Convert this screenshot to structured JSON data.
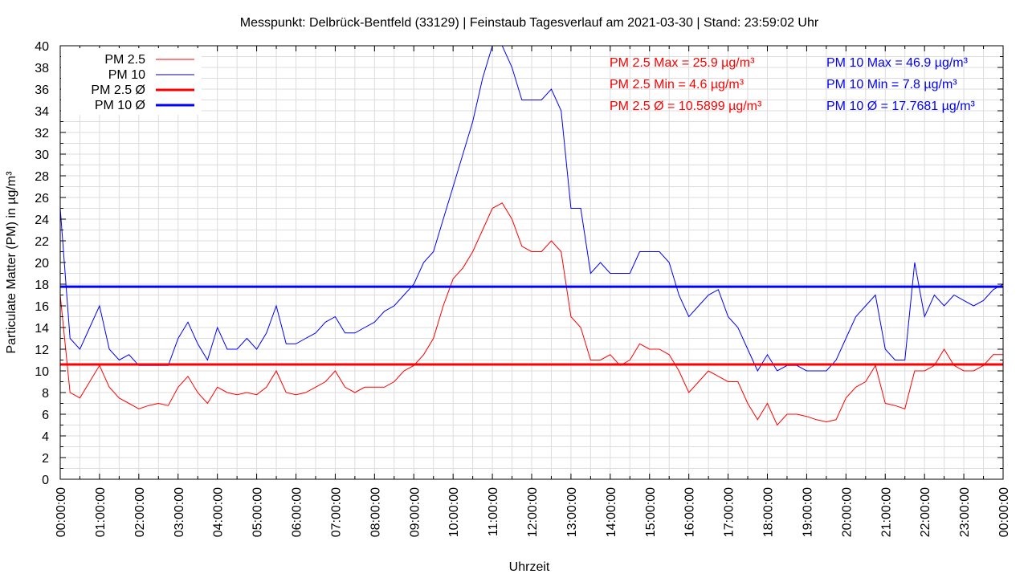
{
  "chart_data": {
    "type": "line",
    "title": "Messpunkt: Delbrück-Bentfeld (33129) | Feinstaub Tagesverlauf am 2021-03-30 | Stand: 23:59:02 Uhr",
    "xlabel": "Uhrzeit",
    "ylabel": "Particulate Matter (PM) in µg/m³",
    "ylim": [
      0,
      40
    ],
    "xlim_hours": [
      0,
      24
    ],
    "grid": true,
    "legend_position": "top-left",
    "x_start_hours": 0,
    "x_step_hours": 0.25,
    "y_ticks": [
      "0",
      "2",
      "4",
      "6",
      "8",
      "10",
      "12",
      "14",
      "16",
      "18",
      "20",
      "22",
      "24",
      "26",
      "28",
      "30",
      "32",
      "34",
      "36",
      "38",
      "40"
    ],
    "x_ticks": [
      "00:00:00",
      "01:00:00",
      "02:00:00",
      "03:00:00",
      "04:00:00",
      "05:00:00",
      "06:00:00",
      "07:00:00",
      "08:00:00",
      "09:00:00",
      "10:00:00",
      "11:00:00",
      "12:00:00",
      "13:00:00",
      "14:00:00",
      "15:00:00",
      "16:00:00",
      "17:00:00",
      "18:00:00",
      "19:00:00",
      "20:00:00",
      "21:00:00",
      "22:00:00",
      "23:00:00",
      "00:00:00"
    ],
    "series": [
      {
        "name": "PM 2.5",
        "color": "#ff0000",
        "values": [
          17,
          8,
          7.5,
          9,
          10.5,
          8.5,
          7.5,
          7,
          6.5,
          6.8,
          7,
          6.8,
          8.5,
          9.5,
          8,
          7,
          8.5,
          8,
          7.8,
          8,
          7.8,
          8.5,
          10,
          8,
          7.8,
          8,
          8.5,
          9,
          10,
          8.5,
          8,
          8.5,
          8.5,
          8.5,
          9,
          10,
          10.5,
          11.5,
          13,
          16,
          18.5,
          19.5,
          21,
          23,
          25,
          25.5,
          24,
          21.5,
          21,
          21,
          22,
          21,
          15,
          14,
          11,
          11,
          11.5,
          10.5,
          11,
          12.5,
          12,
          12,
          11.5,
          10,
          8,
          9,
          10,
          9.5,
          9,
          9,
          7,
          5.5,
          7,
          5,
          6,
          6,
          5.8,
          5.5,
          5.3,
          5.5,
          7.5,
          8.5,
          9,
          10.5,
          7,
          6.8,
          6.5,
          10,
          10,
          10.5,
          12,
          10.5,
          10,
          10,
          10.5,
          11.5,
          11.5
        ]
      },
      {
        "name": "PM 10",
        "color": "#0000ff",
        "legend_color": "#000099",
        "values": [
          25,
          13,
          12,
          14,
          16,
          12,
          11,
          11.5,
          10.5,
          10.5,
          10.5,
          10.5,
          13,
          14.5,
          12.5,
          11,
          14,
          12,
          12,
          13,
          12,
          13.5,
          16,
          12.5,
          12.5,
          13,
          13.5,
          14.5,
          15,
          13.5,
          13.5,
          14,
          14.5,
          15.5,
          16,
          17,
          18,
          20,
          21,
          24,
          27,
          30,
          33,
          37,
          40,
          42,
          38,
          35,
          35,
          35,
          36,
          34,
          25,
          25,
          19,
          20,
          19,
          19,
          19,
          21,
          21,
          21,
          20,
          17,
          15,
          16,
          17,
          17.5,
          15,
          14,
          12,
          10,
          11.5,
          10,
          10.5,
          10.5,
          10,
          10,
          10,
          11,
          13,
          15,
          16,
          17,
          12,
          11,
          11,
          20,
          15,
          17,
          16,
          17,
          16.5,
          16,
          16.5,
          17.5,
          18
        ]
      },
      {
        "name": "PM 2.5 Ø",
        "color": "#ff0000",
        "constant": 10.5899
      },
      {
        "name": "PM 10 Ø",
        "color": "#0000ff",
        "constant": 17.7681
      }
    ],
    "annotations": {
      "pm25": [
        "PM 2.5 Max = 25.9 µg/m³",
        "PM 2.5 Min = 4.6 µg/m³",
        "PM 2.5 Ø = 10.5899 µg/m³"
      ],
      "pm10": [
        "PM 10 Max = 46.9 µg/m³",
        "PM 10 Min = 7.8 µg/m³",
        "PM 10 Ø = 17.7681 µg/m³"
      ]
    }
  }
}
